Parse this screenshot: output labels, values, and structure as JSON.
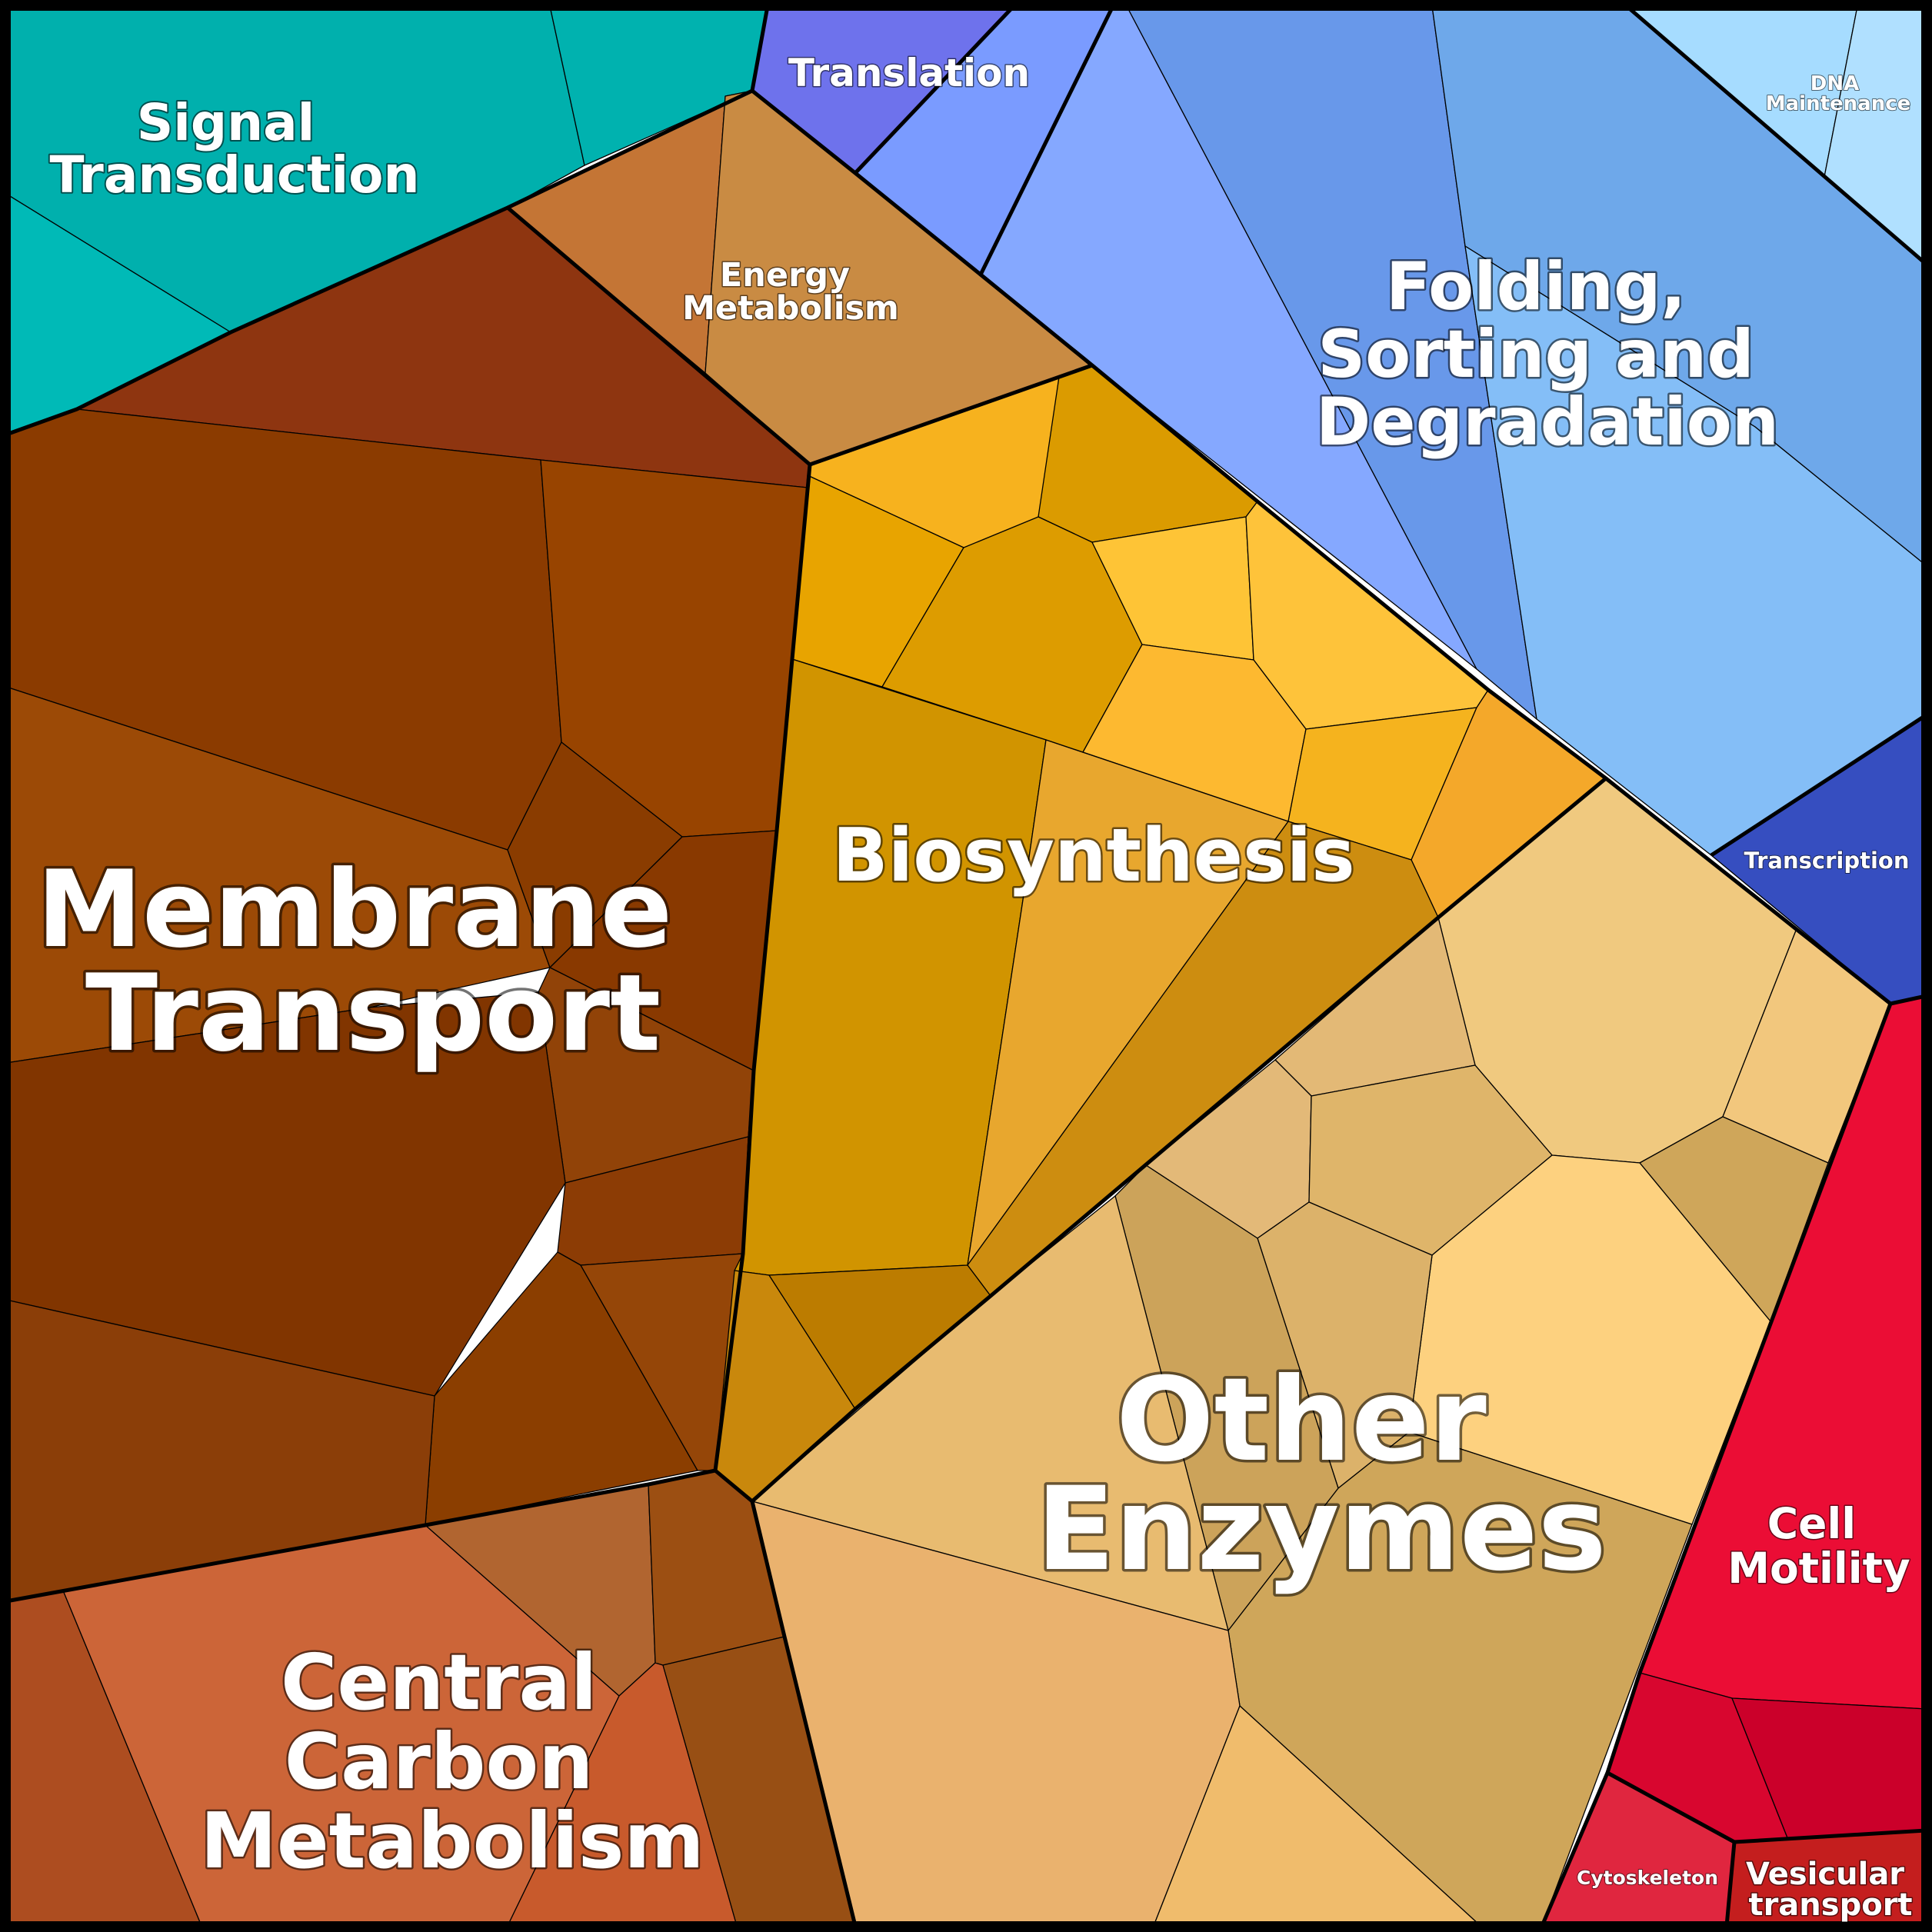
{
  "categories": [
    {
      "id": "signal-transduction",
      "label": [
        "Signal",
        "Transduction"
      ],
      "color": "#00b0ad"
    },
    {
      "id": "translation",
      "label": [
        "Translation"
      ],
      "color": "#6e72ec"
    },
    {
      "id": "energy-metabolism",
      "label": [
        "Energy",
        "Metabolism"
      ],
      "color": "#c98b43"
    },
    {
      "id": "folding-sorting-degradation",
      "label": [
        "Folding,",
        "Sorting and",
        "Degradation"
      ],
      "color": "#6ea8ea"
    },
    {
      "id": "dna-maintenance",
      "label": [
        "DNA",
        "Maintenance"
      ],
      "color": "#a6dcff"
    },
    {
      "id": "membrane-transport",
      "label": [
        "Membrane",
        "Transport"
      ],
      "color": "#8b3c00"
    },
    {
      "id": "biosynthesis",
      "label": [
        "Biosynthesis"
      ],
      "color": "#e3a01a"
    },
    {
      "id": "transcription",
      "label": [
        "Transcription"
      ],
      "color": "#364ec0"
    },
    {
      "id": "other-enzymes",
      "label": [
        "Other",
        "Enzymes"
      ],
      "color": "#e8bb6e"
    },
    {
      "id": "central-carbon-metabolism",
      "label": [
        "Central",
        "Carbon",
        "Metabolism"
      ],
      "color": "#cc6233"
    },
    {
      "id": "cell-motility",
      "label": [
        "Cell",
        "Motility"
      ],
      "color": "#eb0d35"
    },
    {
      "id": "cytoskeleton",
      "label": [
        "Cytoskeleton"
      ],
      "color": "#e0263f"
    },
    {
      "id": "vesicular-transport",
      "label": [
        "Vesicular",
        "transport"
      ],
      "color": "#c41e1e"
    }
  ]
}
